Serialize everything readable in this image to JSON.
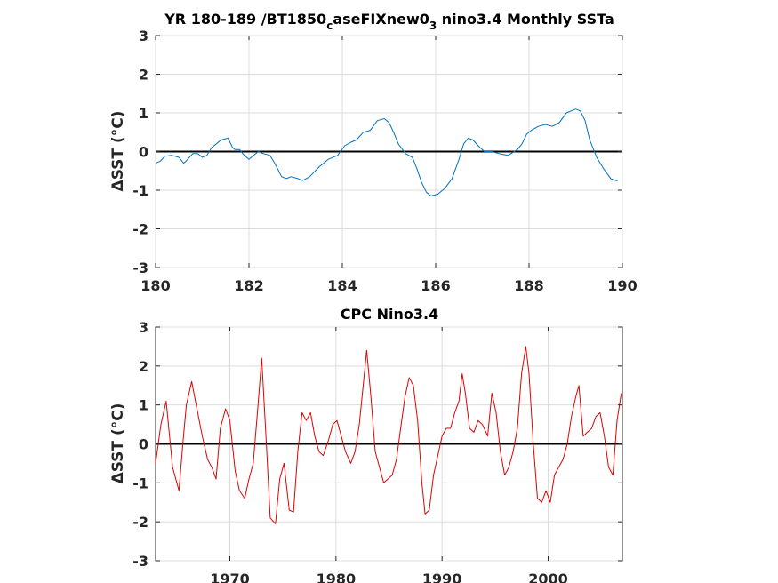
{
  "chart_data": [
    {
      "type": "line",
      "title": "YR 180-189 /BT1850",
      "title_sub": "c",
      "title_mid": "aseFIXnew0",
      "title_sub2": "3",
      "title_end": " nino3.4 Monthly SSTa",
      "ylabel": "ΔSST (°C)",
      "xlim": [
        180,
        190
      ],
      "ylim": [
        -3,
        3
      ],
      "xticks": [
        180,
        182,
        184,
        186,
        188,
        190
      ],
      "yticks": [
        -3,
        -2,
        -1,
        0,
        1,
        2,
        3
      ],
      "grid": true,
      "line_color": "#0072BD",
      "zero_line_color": "#000000",
      "series": [
        {
          "x": [
            180.0,
            180.1,
            180.2,
            180.35,
            180.5,
            180.6,
            180.65,
            180.8,
            180.9,
            181.0,
            181.1,
            181.2,
            181.3,
            181.4,
            181.55,
            181.65,
            181.7,
            181.8,
            181.9,
            182.0,
            182.1,
            182.2,
            182.3,
            182.45,
            182.55,
            182.7,
            182.8,
            182.9,
            183.05,
            183.15,
            183.3,
            183.5,
            183.7,
            183.9,
            184.05,
            184.2,
            184.3,
            184.45,
            184.6,
            184.75,
            184.9,
            185.0,
            185.1,
            185.2,
            185.35,
            185.5,
            185.6,
            185.7,
            185.8,
            185.9,
            186.05,
            186.2,
            186.35,
            186.5,
            186.6,
            186.7,
            186.8,
            186.95,
            187.05,
            187.2,
            187.35,
            187.55,
            187.75,
            187.85,
            187.95,
            188.05,
            188.2,
            188.35,
            188.5,
            188.65,
            188.8,
            188.9,
            189.0,
            189.1,
            189.2,
            189.3,
            189.45,
            189.6,
            189.75,
            189.85,
            189.9
          ],
          "y": [
            -0.3,
            -0.25,
            -0.12,
            -0.1,
            -0.15,
            -0.3,
            -0.25,
            -0.05,
            -0.05,
            -0.15,
            -0.1,
            0.1,
            0.2,
            0.3,
            0.35,
            0.1,
            0.05,
            0.05,
            -0.1,
            -0.2,
            -0.1,
            0.0,
            -0.05,
            -0.1,
            -0.3,
            -0.65,
            -0.7,
            -0.65,
            -0.7,
            -0.75,
            -0.65,
            -0.4,
            -0.2,
            -0.1,
            0.15,
            0.25,
            0.3,
            0.5,
            0.55,
            0.8,
            0.85,
            0.75,
            0.5,
            0.2,
            -0.05,
            -0.15,
            -0.45,
            -0.8,
            -1.05,
            -1.15,
            -1.1,
            -0.95,
            -0.7,
            -0.2,
            0.2,
            0.35,
            0.3,
            0.1,
            0.0,
            0.0,
            -0.05,
            -0.1,
            0.05,
            0.2,
            0.45,
            0.55,
            0.65,
            0.7,
            0.65,
            0.75,
            1.0,
            1.05,
            1.1,
            1.05,
            0.8,
            0.3,
            -0.15,
            -0.45,
            -0.7,
            -0.75,
            -0.75
          ]
        }
      ]
    },
    {
      "type": "line",
      "title": "CPC Nino3.4",
      "ylabel": "ΔSST (°C)",
      "xlim": [
        1963,
        2007
      ],
      "ylim": [
        -3,
        3
      ],
      "xticks": [
        1970,
        1980,
        1990,
        2000
      ],
      "yticks": [
        -3,
        -2,
        -1,
        0,
        1,
        2,
        3
      ],
      "grid": true,
      "line_color": "#E00000",
      "zero_line_color": "#000000",
      "series": [
        {
          "x": [
            1963.0,
            1963.5,
            1964.0,
            1964.6,
            1965.2,
            1965.6,
            1965.9,
            1966.4,
            1966.9,
            1967.4,
            1967.9,
            1968.3,
            1968.7,
            1969.1,
            1969.6,
            1970.0,
            1970.5,
            1970.9,
            1971.4,
            1971.8,
            1972.2,
            1972.6,
            1973.0,
            1973.4,
            1973.8,
            1974.3,
            1974.7,
            1975.1,
            1975.6,
            1976.0,
            1976.4,
            1976.8,
            1977.2,
            1977.6,
            1978.0,
            1978.4,
            1978.8,
            1979.3,
            1979.7,
            1980.1,
            1980.5,
            1980.9,
            1981.4,
            1981.8,
            1982.2,
            1982.6,
            1982.9,
            1983.3,
            1983.7,
            1984.1,
            1984.5,
            1984.9,
            1985.3,
            1985.7,
            1986.1,
            1986.5,
            1986.9,
            1987.3,
            1987.7,
            1988.1,
            1988.4,
            1988.8,
            1989.2,
            1989.6,
            1990.0,
            1990.4,
            1990.8,
            1991.2,
            1991.6,
            1991.9,
            1992.2,
            1992.6,
            1993.0,
            1993.4,
            1993.8,
            1994.3,
            1994.7,
            1995.1,
            1995.5,
            1995.9,
            1996.3,
            1996.7,
            1997.1,
            1997.5,
            1997.9,
            1998.2,
            1998.6,
            1999.0,
            1999.4,
            1999.8,
            2000.2,
            2000.6,
            2001.0,
            2001.4,
            2001.8,
            2002.2,
            2002.6,
            2002.9,
            2003.3,
            2003.7,
            2004.1,
            2004.5,
            2004.9,
            2005.3,
            2005.7,
            2006.1,
            2006.5,
            2006.9
          ],
          "y": [
            -0.5,
            0.5,
            1.1,
            -0.6,
            -1.2,
            0.1,
            1.0,
            1.6,
            0.9,
            0.2,
            -0.4,
            -0.6,
            -0.9,
            0.4,
            0.9,
            0.6,
            -0.7,
            -1.2,
            -1.4,
            -0.9,
            -0.5,
            0.8,
            2.2,
            0.2,
            -1.9,
            -2.05,
            -0.9,
            -0.5,
            -1.7,
            -1.75,
            -0.2,
            0.8,
            0.6,
            0.8,
            0.2,
            -0.2,
            -0.3,
            0.1,
            0.5,
            0.6,
            0.2,
            -0.2,
            -0.5,
            -0.2,
            0.5,
            1.6,
            2.4,
            1.2,
            -0.2,
            -0.6,
            -1.0,
            -0.9,
            -0.8,
            -0.4,
            0.4,
            1.2,
            1.7,
            1.5,
            0.6,
            -1.0,
            -1.8,
            -1.7,
            -0.8,
            -0.3,
            0.2,
            0.4,
            0.4,
            0.8,
            1.1,
            1.8,
            1.3,
            0.4,
            0.3,
            0.6,
            0.5,
            0.2,
            1.3,
            0.8,
            -0.2,
            -0.8,
            -0.6,
            -0.2,
            0.4,
            1.8,
            2.5,
            1.8,
            0.0,
            -1.4,
            -1.5,
            -1.2,
            -1.5,
            -0.8,
            -0.6,
            -0.4,
            0.0,
            0.7,
            1.2,
            1.5,
            0.2,
            0.3,
            0.4,
            0.7,
            0.8,
            0.2,
            -0.6,
            -0.8,
            0.6,
            1.3
          ]
        }
      ]
    }
  ]
}
